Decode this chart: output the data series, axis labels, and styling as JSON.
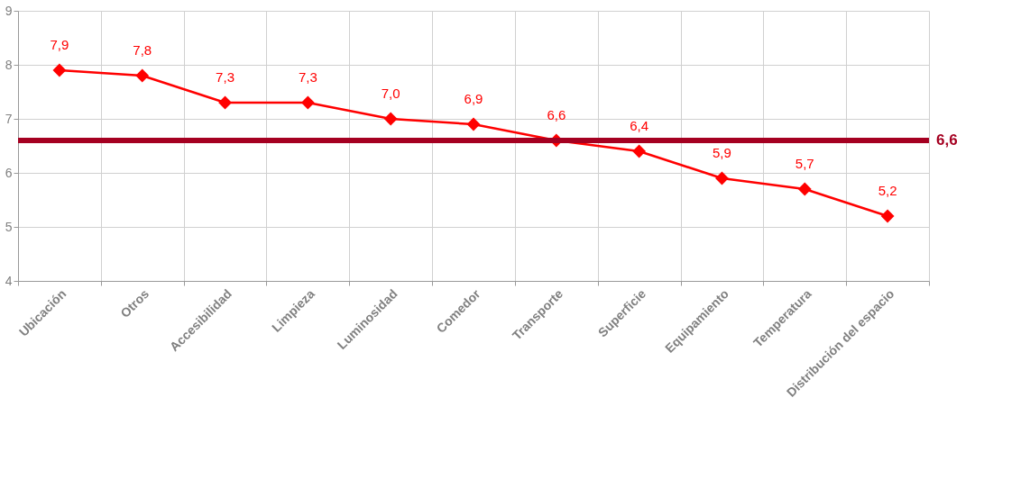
{
  "chart_data": {
    "type": "line",
    "categories": [
      "Ubicación",
      "Otros",
      "Accesibilidad",
      "Limpieza",
      "Luminosidad",
      "Comedor",
      "Transporte",
      "Superficie",
      "Equipamiento",
      "Temperatura",
      "Distribución del espacio"
    ],
    "series": [
      {
        "color": "#ff0000",
        "values": [
          7.9,
          7.8,
          7.3,
          7.3,
          7.0,
          6.9,
          6.6,
          6.4,
          5.9,
          5.7,
          5.2
        ],
        "value_labels": [
          "7,9",
          "7,8",
          "7,3",
          "7,3",
          "7,0",
          "6,9",
          "6,6",
          "6,4",
          "5,9",
          "5,7",
          "5,2"
        ]
      }
    ],
    "ylim": [
      4,
      9
    ],
    "yticks": [
      4,
      5,
      6,
      7,
      8,
      9
    ],
    "grid": true,
    "marker": "diamond",
    "line_style": "solid",
    "ref_lines": [
      {
        "axis": "y",
        "value": 6.6,
        "label": "6,6",
        "color": "#a50021"
      }
    ]
  }
}
